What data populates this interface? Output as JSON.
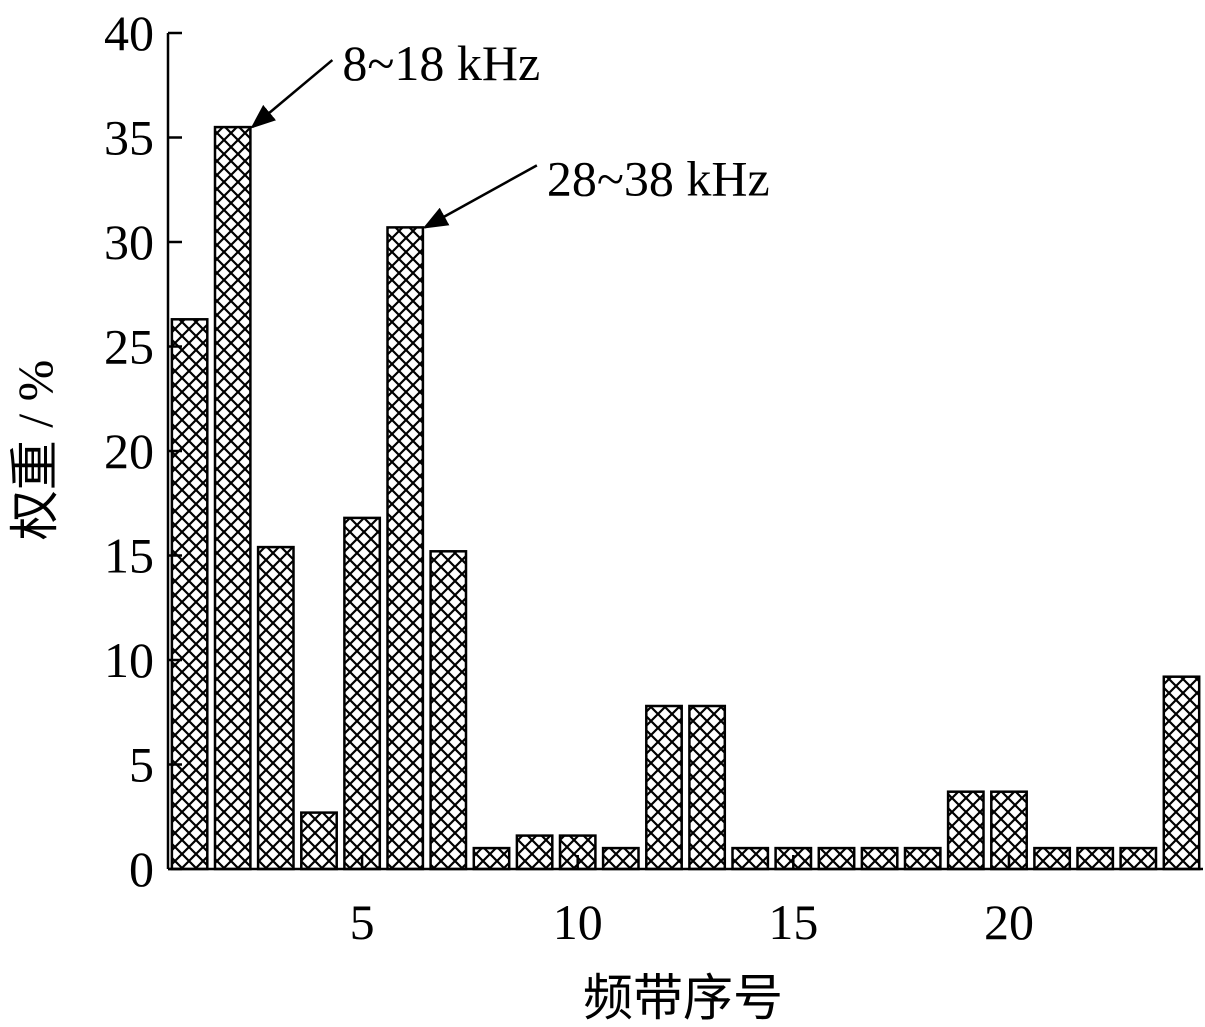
{
  "chart_data": {
    "type": "bar",
    "title": "",
    "xlabel": "频带序号",
    "ylabel": "权重 / %",
    "categories": [
      "1",
      "2",
      "3",
      "4",
      "5",
      "6",
      "7",
      "8",
      "9",
      "10",
      "11",
      "12",
      "13",
      "14",
      "15",
      "16",
      "17",
      "18",
      "19",
      "20",
      "21",
      "22",
      "23",
      "24"
    ],
    "values": [
      26.3,
      35.5,
      15.4,
      2.7,
      16.8,
      30.7,
      15.2,
      1.0,
      1.6,
      1.6,
      1.0,
      7.8,
      7.8,
      1.0,
      1.0,
      1.0,
      1.0,
      1.0,
      3.7,
      3.7,
      1.0,
      1.0,
      1.0,
      9.2
    ],
    "ylim": [
      0,
      40
    ],
    "y_ticks": [
      0,
      5,
      10,
      15,
      20,
      25,
      30,
      35,
      40
    ],
    "x_ticks": [
      5,
      10,
      15,
      20
    ],
    "bar_fill": "crosshatch",
    "grid": false,
    "annotations": [
      {
        "text": "8~18 kHz",
        "target_category": "2"
      },
      {
        "text": "28~38 kHz",
        "target_category": "6"
      }
    ]
  }
}
